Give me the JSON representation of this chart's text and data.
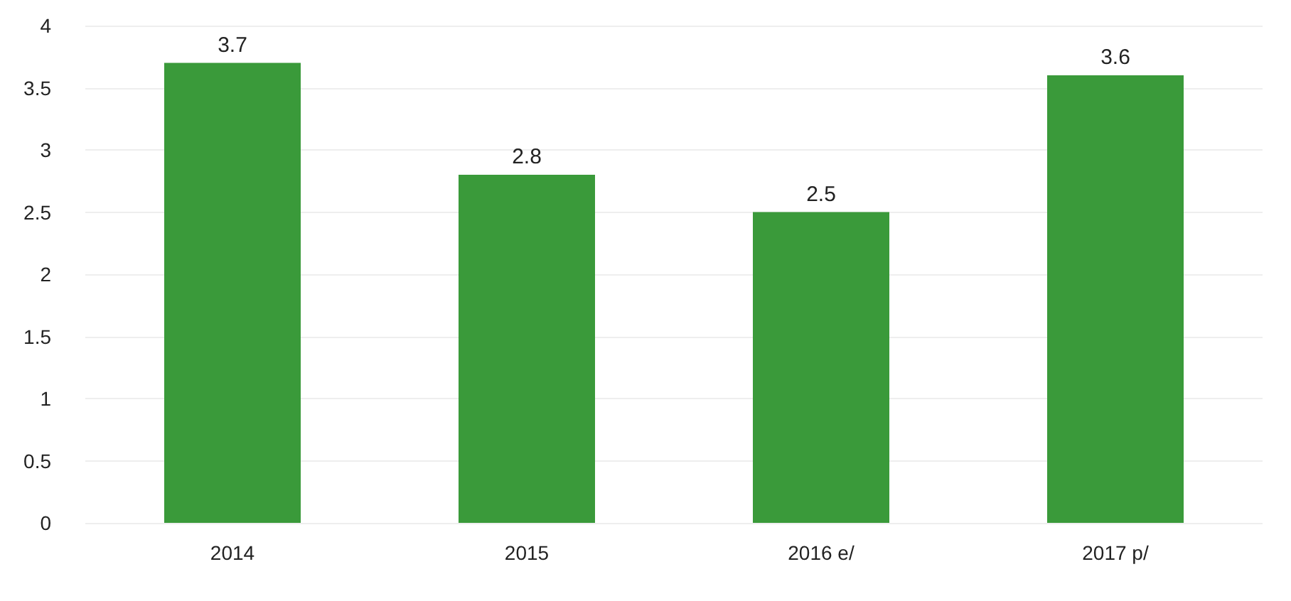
{
  "chart_data": {
    "type": "bar",
    "categories": [
      "2014",
      "2015",
      "2016 e/",
      "2017 p/"
    ],
    "values": [
      3.7,
      2.8,
      2.5,
      3.6
    ],
    "color": "#3a9a3a",
    "ylim": [
      0,
      4
    ],
    "yticks": [
      0,
      0.5,
      1,
      1.5,
      2,
      2.5,
      3,
      3.5,
      4
    ],
    "grid": "y",
    "data_labels": true
  }
}
